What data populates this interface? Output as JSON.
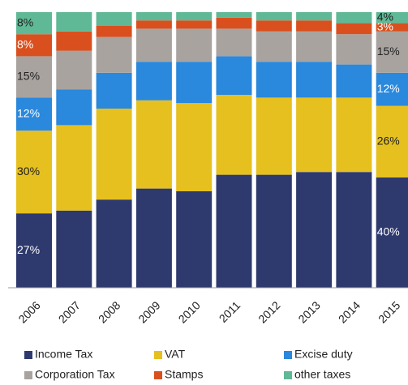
{
  "chart_data": {
    "type": "stacked-bar",
    "categories": [
      "2006",
      "2007",
      "2008",
      "2009",
      "2010",
      "2011",
      "2012",
      "2013",
      "2014",
      "2015"
    ],
    "ylim": [
      0,
      100
    ],
    "series": [
      {
        "name": "Income Tax",
        "color": "#2e3a6e",
        "values": [
          27,
          28,
          32,
          36,
          35,
          41,
          41,
          42,
          42,
          40
        ],
        "value_labels": [
          "27%",
          null,
          null,
          null,
          null,
          null,
          null,
          null,
          null,
          "40%"
        ]
      },
      {
        "name": "VAT",
        "color": "#e6c01e",
        "values": [
          30,
          31,
          33,
          32,
          32,
          29,
          28,
          27,
          27,
          26
        ],
        "value_labels": [
          "30%",
          null,
          null,
          null,
          null,
          null,
          null,
          null,
          null,
          "26%"
        ]
      },
      {
        "name": "Excise duty",
        "color": "#2a88dd",
        "values": [
          12,
          13,
          13,
          14,
          15,
          14,
          13,
          13,
          12,
          12
        ],
        "value_labels": [
          "12%",
          null,
          null,
          null,
          null,
          null,
          null,
          null,
          null,
          "12%"
        ]
      },
      {
        "name": "Corporation Tax",
        "color": "#a8a39f",
        "values": [
          15,
          14,
          13,
          12,
          12,
          10,
          11,
          11,
          11,
          15
        ],
        "value_labels": [
          "15%",
          null,
          null,
          null,
          null,
          null,
          null,
          null,
          null,
          "15%"
        ]
      },
      {
        "name": "Stamps",
        "color": "#d9501e",
        "values": [
          8,
          7,
          4,
          3,
          3,
          4,
          4,
          4,
          4,
          3
        ],
        "value_labels": [
          "8%",
          null,
          null,
          null,
          null,
          null,
          null,
          null,
          null,
          "3%"
        ]
      },
      {
        "name": "other taxes",
        "color": "#5fb896",
        "values": [
          8,
          7,
          5,
          3,
          3,
          2,
          3,
          3,
          4,
          4
        ],
        "value_labels": [
          "8%",
          null,
          null,
          null,
          null,
          null,
          null,
          null,
          null,
          "4%"
        ]
      }
    ]
  }
}
